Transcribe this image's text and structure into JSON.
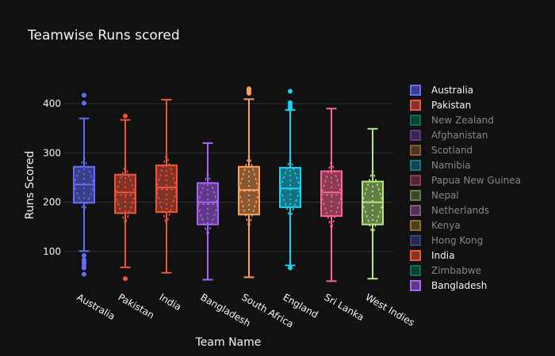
{
  "chart_data": {
    "type": "box",
    "title": "Teamwise Runs scored",
    "xlabel": "Team Name",
    "ylabel": "Runs Scored",
    "ylim": [
      30,
      440
    ],
    "yticks": [
      100,
      200,
      300,
      400
    ],
    "grid": true,
    "legend_position": "right",
    "series": [
      {
        "name": "Australia",
        "color": "#636efa",
        "q1": 199,
        "median": 236,
        "q3": 272,
        "lower_fence": 101,
        "upper_fence": 370,
        "mean": 236,
        "outliers": [
          54,
          67,
          72,
          78,
          83,
          92,
          401,
          417
        ],
        "notch": [
          226,
          246
        ]
      },
      {
        "name": "Pakistan",
        "color": "#ef553b",
        "q1": 178,
        "median": 220,
        "q3": 256,
        "lower_fence": 68,
        "upper_fence": 367,
        "mean": 215,
        "outliers": [
          45,
          375
        ],
        "notch": [
          208,
          232
        ]
      },
      {
        "name": "India",
        "color": "#ef553b",
        "q1": 180,
        "median": 230,
        "q3": 275,
        "lower_fence": 57,
        "upper_fence": 408,
        "mean": 226,
        "outliers": [],
        "notch": [
          218,
          242
        ]
      },
      {
        "name": "Bangladesh",
        "color": "#ab63fa",
        "q1": 155,
        "median": 200,
        "q3": 239,
        "lower_fence": 43,
        "upper_fence": 320,
        "mean": 196,
        "outliers": [],
        "notch": [
          190,
          210
        ]
      },
      {
        "name": "South Africa",
        "color": "#ffa15a",
        "q1": 175,
        "median": 225,
        "q3": 272,
        "lower_fence": 48,
        "upper_fence": 409,
        "mean": 223,
        "outliers": [
          421,
          424,
          427,
          430
        ],
        "notch": [
          215,
          235
        ]
      },
      {
        "name": "England",
        "color": "#19d3f3",
        "q1": 190,
        "median": 228,
        "q3": 270,
        "lower_fence": 72,
        "upper_fence": 387,
        "mean": 228,
        "outliers": [
          67,
          389,
          392,
          397,
          402,
          425
        ],
        "notch": [
          218,
          238
        ]
      },
      {
        "name": "Sri Lanka",
        "color": "#ff6692",
        "q1": 172,
        "median": 220,
        "q3": 263,
        "lower_fence": 40,
        "upper_fence": 390,
        "mean": 215,
        "outliers": [],
        "notch": [
          209,
          231
        ]
      },
      {
        "name": "West Indies",
        "color": "#b6e880",
        "q1": 155,
        "median": 200,
        "q3": 242,
        "lower_fence": 45,
        "upper_fence": 349,
        "mean": 200,
        "outliers": [],
        "notch": [
          190,
          210
        ]
      }
    ],
    "categories": [
      "Australia",
      "Pakistan",
      "India",
      "Bangladesh",
      "South Africa",
      "England",
      "Sri Lanka",
      "West Indies"
    ]
  },
  "legend": {
    "items": [
      {
        "name": "Australia",
        "color": "#636efa",
        "active": true
      },
      {
        "name": "Pakistan",
        "color": "#ef553b",
        "active": true
      },
      {
        "name": "New Zealand",
        "color": "#00cc96",
        "active": false
      },
      {
        "name": "Afghanistan",
        "color": "#ab63fa",
        "active": false
      },
      {
        "name": "Scotland",
        "color": "#ffa15a",
        "active": false
      },
      {
        "name": "Namibia",
        "color": "#19d3f3",
        "active": false
      },
      {
        "name": "Papua New Guinea",
        "color": "#ff6692",
        "active": false
      },
      {
        "name": "Nepal",
        "color": "#b6e880",
        "active": false
      },
      {
        "name": "Netherlands",
        "color": "#ff97ff",
        "active": false
      },
      {
        "name": "Kenya",
        "color": "#fecb52",
        "active": false
      },
      {
        "name": "Hong Kong",
        "color": "#636efa",
        "active": false
      },
      {
        "name": "India",
        "color": "#ef553b",
        "active": true
      },
      {
        "name": "Zimbabwe",
        "color": "#00cc96",
        "active": false
      },
      {
        "name": "Bangladesh",
        "color": "#ab63fa",
        "active": true
      }
    ]
  }
}
